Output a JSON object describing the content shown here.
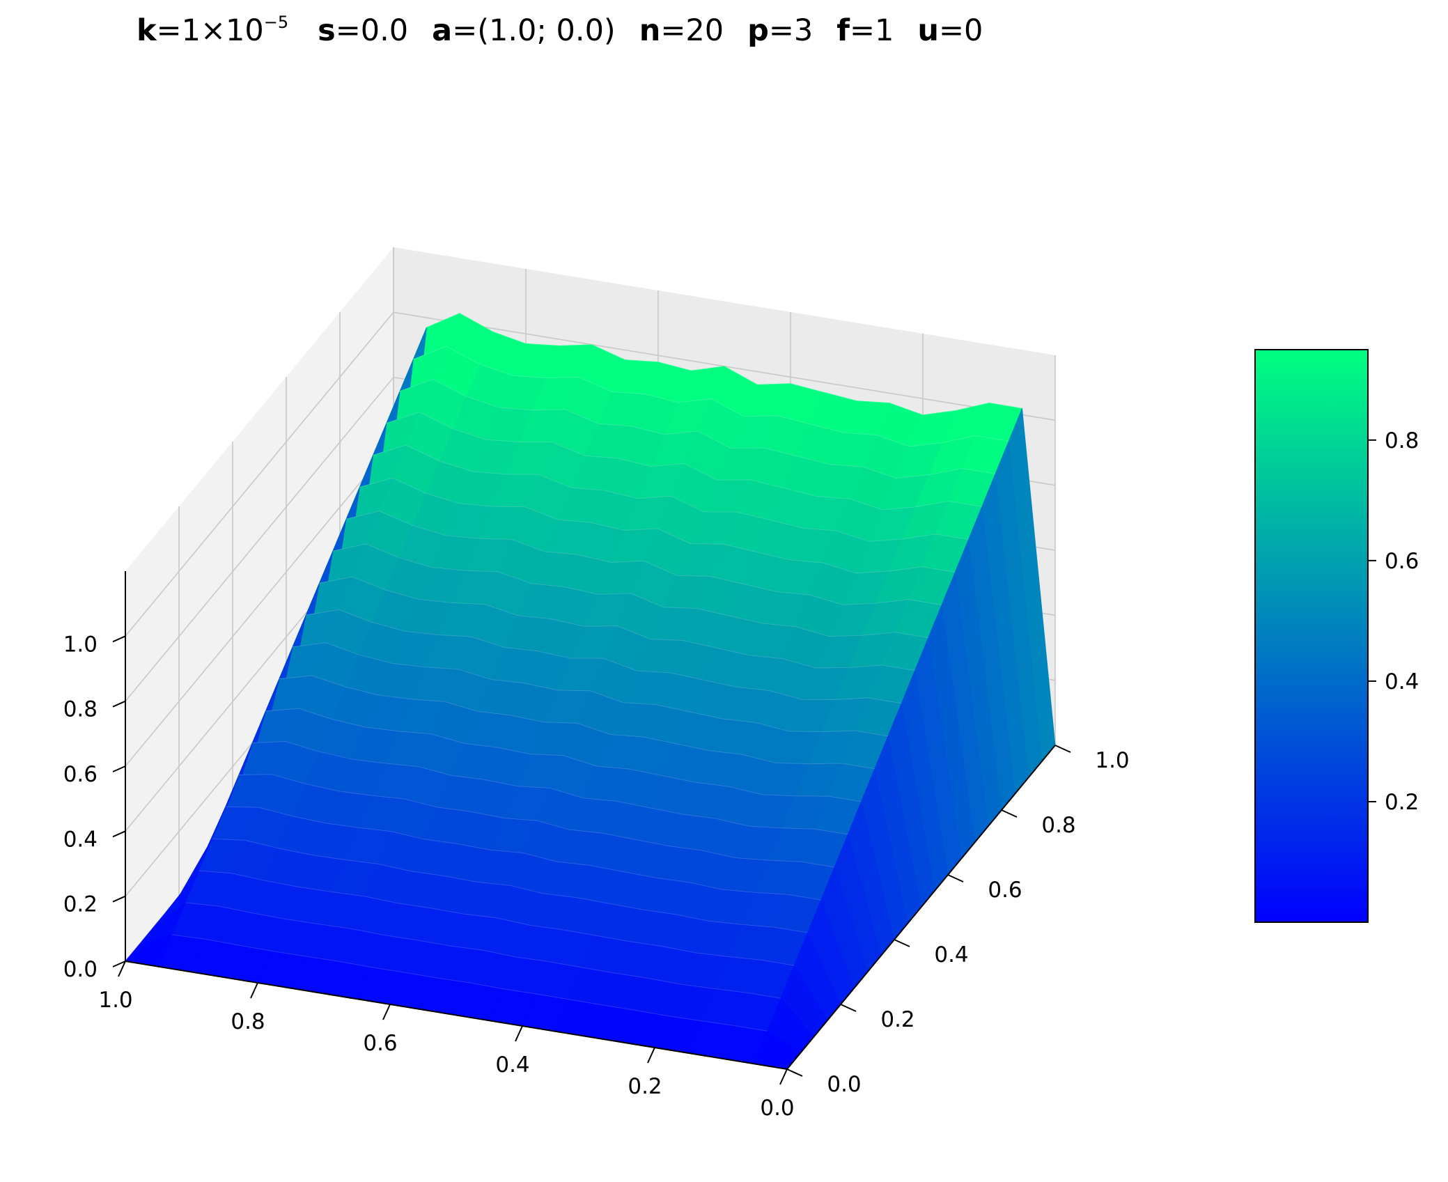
{
  "title": {
    "params": [
      {
        "name": "k",
        "base": "=1×10",
        "exp": "−5"
      },
      {
        "name": "s",
        "base": "=0.0",
        "exp": ""
      },
      {
        "name": "a",
        "base": "=(1.0; 0.0)",
        "exp": ""
      },
      {
        "name": "n",
        "base": "=20",
        "exp": ""
      },
      {
        "name": "p",
        "base": "=3",
        "exp": ""
      },
      {
        "name": "f",
        "base": "=1",
        "exp": ""
      },
      {
        "name": "u",
        "base": "=0",
        "exp": ""
      }
    ]
  },
  "chart_data": {
    "type": "surface3d",
    "grid_n": 20,
    "x_ticks": [
      "1.0",
      "0.8",
      "0.6",
      "0.4",
      "0.2",
      "0.0"
    ],
    "y_ticks": [
      "0.0",
      "0.2",
      "0.4",
      "0.6",
      "0.8",
      "1.0"
    ],
    "z_ticks": [
      "0.0",
      "0.2",
      "0.4",
      "0.6",
      "0.8",
      "1.0"
    ],
    "xlim": [
      0,
      1
    ],
    "ylim": [
      0,
      1
    ],
    "zlim": [
      0,
      1.2
    ],
    "surface_description_values": {
      "x": [
        0.0,
        0.05,
        0.1,
        0.15,
        0.2,
        0.25,
        0.3,
        0.35,
        0.4,
        0.45,
        0.5,
        0.55,
        0.6,
        0.65,
        0.7,
        0.75,
        0.8,
        0.85,
        0.9,
        0.95,
        1.0
      ],
      "y": [
        0.0,
        0.05,
        0.1,
        0.15,
        0.2,
        0.25,
        0.3,
        0.35,
        0.4,
        0.45,
        0.5,
        0.55,
        0.6,
        0.65,
        0.7,
        0.75,
        0.8,
        0.85,
        0.9,
        0.95,
        1.0
      ],
      "z_outlet_y1": [
        0.0,
        1.02,
        1.02,
        0.98,
        0.95,
        0.97,
        0.96,
        0.97,
        0.98,
        0.96,
        1.0,
        0.97,
        0.98,
        0.97,
        1.0,
        0.98,
        0.97,
        0.99,
        1.03,
        0.97,
        0.0
      ]
    },
    "colorbar": {
      "ticks": [
        "0.2",
        "0.4",
        "0.6",
        "0.8"
      ],
      "tick_values": [
        0.2,
        0.4,
        0.6,
        0.8
      ],
      "range": [
        0.0,
        0.95
      ],
      "colormap": "winter",
      "color_low": "#0000ff",
      "color_high": "#00ff80"
    },
    "grid": true
  }
}
